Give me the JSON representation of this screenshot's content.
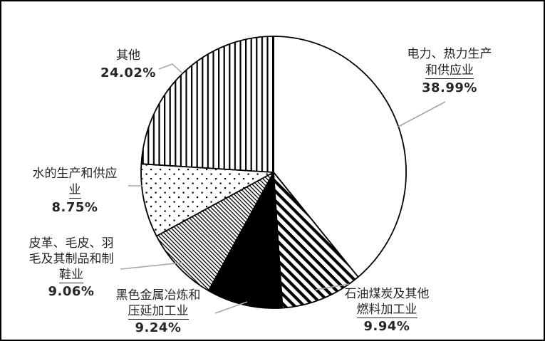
{
  "figure": {
    "background": "#ffffff",
    "border_color": "#000000"
  },
  "chart_data": {
    "type": "pie",
    "title": "",
    "start_angle_deg": 0,
    "direction": "clockwise",
    "legend": "none",
    "units": "percent",
    "slices": [
      {
        "name": "电力、热力生产和供应业",
        "label_lines": [
          "电力、热力生产",
          "和供应业"
        ],
        "value": 38.99,
        "pct_label": "38.99%",
        "fill": "white"
      },
      {
        "name": "石油煤炭及其他燃料加工业",
        "label_lines": [
          "石油煤炭及其他",
          "燃料加工业"
        ],
        "value": 9.94,
        "pct_label": "9.94%",
        "fill": "diag-wide"
      },
      {
        "name": "黑色金属冶炼和压延加工业",
        "label_lines": [
          "黑色金属冶炼和",
          "压延加工业"
        ],
        "value": 9.24,
        "pct_label": "9.24%",
        "fill": "black"
      },
      {
        "name": "皮革、毛皮、羽毛及其制品和制鞋业",
        "label_lines": [
          "皮革、毛皮、羽",
          "毛及其制品和制",
          "鞋业"
        ],
        "value": 9.06,
        "pct_label": "9.06%",
        "fill": "diag-fine"
      },
      {
        "name": "水的生产和供应业",
        "label_lines": [
          "水的生产和供应",
          "业"
        ],
        "value": 8.75,
        "pct_label": "8.75%",
        "fill": "dots"
      },
      {
        "name": "其他",
        "label_lines": [
          "其他"
        ],
        "value": 24.02,
        "pct_label": "24.02%",
        "fill": "vlines"
      }
    ],
    "colors": {
      "stroke": "#000000",
      "leader": "#a6a6a6",
      "text": "#262626"
    }
  }
}
